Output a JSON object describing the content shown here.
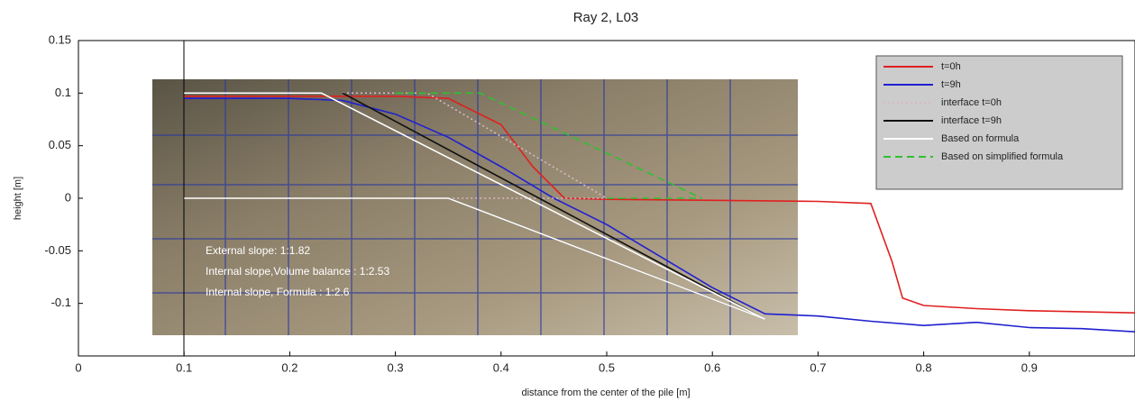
{
  "chart_data": {
    "type": "line",
    "title": "Ray 2, L03",
    "x_label": "distance from the center of the pile [m]",
    "y_label": "height [m]",
    "xlim": [
      0,
      1
    ],
    "ylim": [
      -0.15,
      0.15
    ],
    "xticks": [
      0,
      0.1,
      0.2,
      0.3,
      0.4,
      0.5,
      0.6,
      0.7,
      0.8,
      0.9
    ],
    "yticks": [
      0.15,
      0.1,
      0.05,
      0,
      -0.05,
      -0.1
    ],
    "legend": "upper right",
    "series": [
      {
        "name": "t=0h",
        "color": "#e02020",
        "line_style": "solid",
        "x": [
          0.1,
          0.2,
          0.3,
          0.35,
          0.4,
          0.43,
          0.46,
          0.5,
          0.6,
          0.7,
          0.75,
          0.77,
          0.78,
          0.8,
          0.85,
          0.9,
          1.0
        ],
        "values": [
          0.097,
          0.097,
          0.097,
          0.095,
          0.07,
          0.03,
          0.0,
          -0.001,
          -0.002,
          -0.003,
          -0.005,
          -0.06,
          -0.095,
          -0.102,
          -0.105,
          -0.107,
          -0.109
        ]
      },
      {
        "name": "t=9h",
        "color": "#2020d0",
        "line_style": "solid",
        "x": [
          0.1,
          0.2,
          0.25,
          0.3,
          0.35,
          0.4,
          0.45,
          0.5,
          0.55,
          0.6,
          0.65,
          0.7,
          0.75,
          0.8,
          0.85,
          0.9,
          0.95,
          1.0
        ],
        "values": [
          0.095,
          0.095,
          0.093,
          0.08,
          0.058,
          0.03,
          0.0,
          -0.025,
          -0.055,
          -0.085,
          -0.11,
          -0.112,
          -0.117,
          -0.121,
          -0.118,
          -0.123,
          -0.124,
          -0.127
        ]
      },
      {
        "name": "interface t=0h",
        "color": "#d8b8c8",
        "line_style": "dotted",
        "x": [
          0.25,
          0.33,
          0.5,
          null,
          0.35,
          0.5
        ],
        "values": [
          0.1,
          0.1,
          0.0,
          null,
          0.0,
          0.0
        ]
      },
      {
        "name": "interface t=9h",
        "color": "#111111",
        "line_style": "solid",
        "x": [
          0.25,
          0.65,
          null,
          0.35,
          0.65
        ],
        "values": [
          0.1,
          -0.115,
          null,
          0.0,
          -0.115
        ]
      },
      {
        "name": "Based on formula",
        "color": "#ffffff",
        "line_style": "solid",
        "x": [
          0.1,
          0.23,
          0.65,
          null,
          0.1,
          0.35,
          0.65
        ],
        "values": [
          0.1,
          0.1,
          -0.115,
          null,
          0.0,
          0.0,
          -0.115
        ]
      },
      {
        "name": "Based on simplified formula",
        "color": "#30c030",
        "line_style": "dashed",
        "x": [
          0.3,
          0.38,
          0.59,
          null,
          0.5,
          0.59
        ],
        "values": [
          0.1,
          0.1,
          0.0,
          null,
          0.0,
          0.0
        ]
      }
    ],
    "annotations": [
      "External slope: 1:1.82",
      "Internal slope,Volume balance  : 1:2.53",
      "Internal slope, Formula : 1:2.6"
    ]
  }
}
